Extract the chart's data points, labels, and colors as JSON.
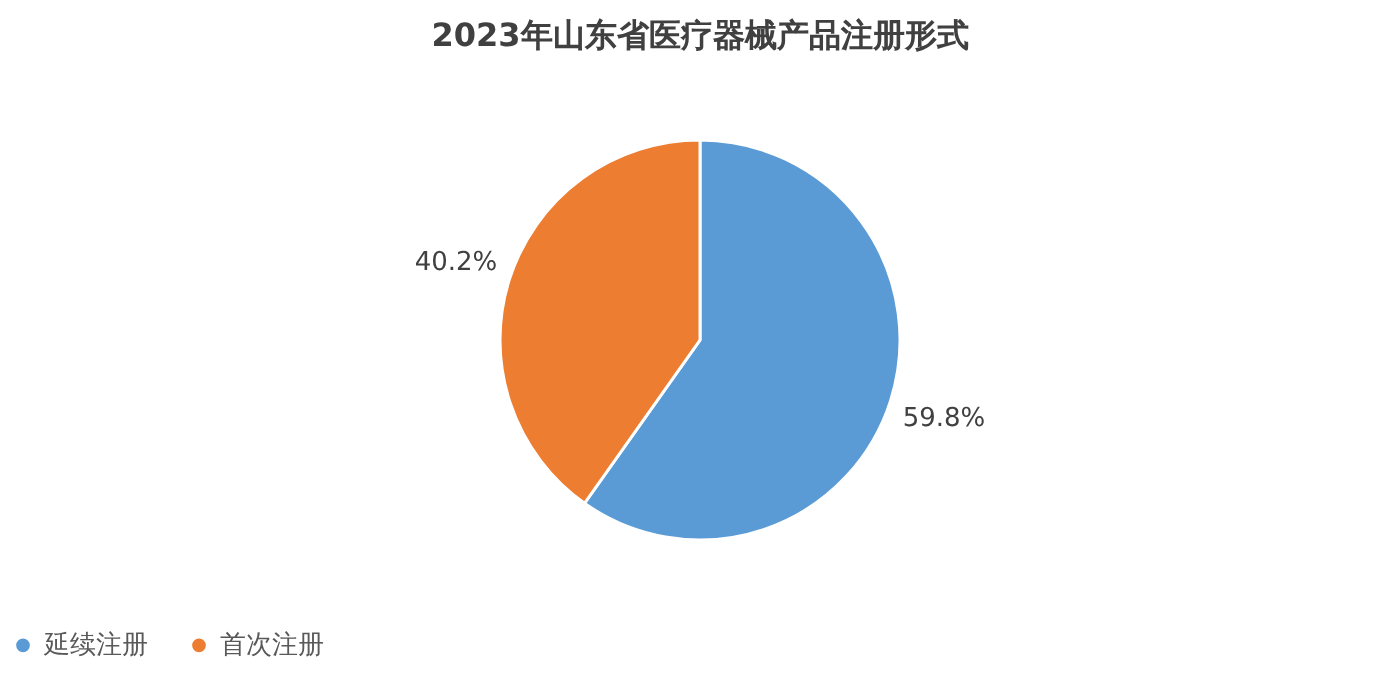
{
  "chart_data": {
    "type": "pie",
    "title": "2023年山东省医疗器械产品注册形式",
    "categories": [
      "延续注册",
      "首次注册"
    ],
    "values": [
      59.8,
      40.2
    ],
    "colors": [
      "#5b9bd5",
      "#ed7d31"
    ],
    "value_labels": [
      "59.8%",
      "40.2%"
    ],
    "legend": "bottom"
  }
}
